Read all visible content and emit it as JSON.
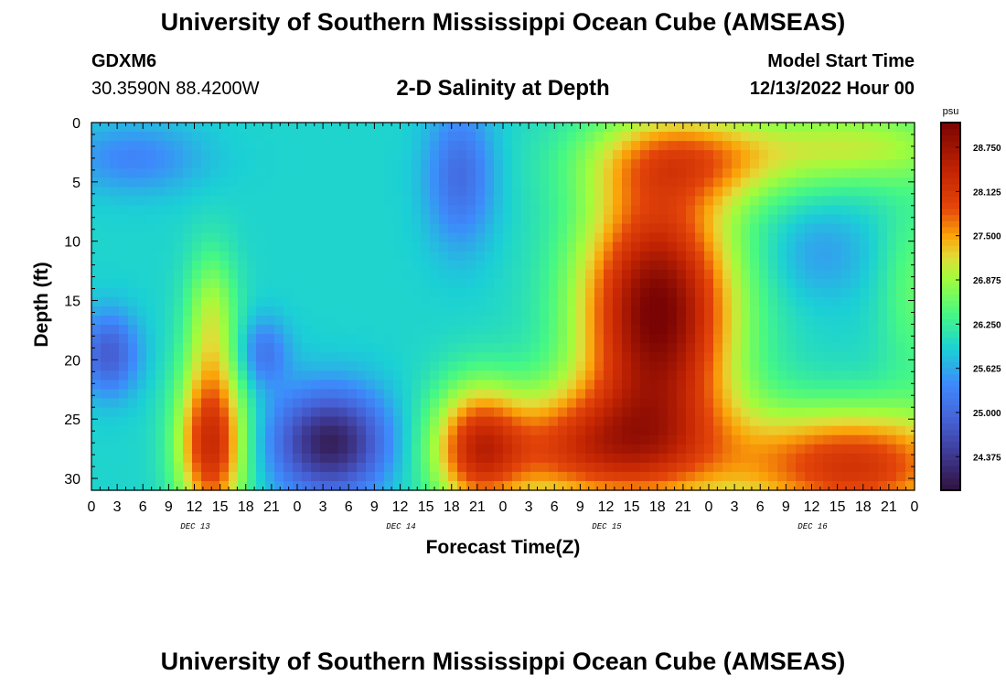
{
  "header": {
    "title": "University of Southern Mississippi Ocean Cube (AMSEAS)",
    "station_id": "GDXM6",
    "station_coords": "30.3590N  88.4200W",
    "chart_heading": "2-D Salinity at Depth",
    "run_label": "Model Start Time",
    "run_value": "12/13/2022 Hour 00"
  },
  "footer": {
    "title": "University of Southern Mississippi Ocean Cube (AMSEAS)"
  },
  "chart_data": {
    "type": "heatmap",
    "title": "2-D Salinity at Depth",
    "xlabel": "Forecast Time(Z)",
    "ylabel": "Depth (ft)",
    "x_tick_labels": [
      "0",
      "3",
      "6",
      "9",
      "12",
      "15",
      "18",
      "21",
      "0",
      "3",
      "6",
      "9",
      "12",
      "15",
      "18",
      "21",
      "0",
      "3",
      "6",
      "9",
      "12",
      "15",
      "18",
      "21",
      "0",
      "3",
      "6",
      "9",
      "12",
      "15",
      "18",
      "21",
      "0"
    ],
    "x_day_labels": [
      "DEC 13",
      "DEC 14",
      "DEC 15",
      "DEC 16"
    ],
    "x_range_hours": [
      0,
      96
    ],
    "y_ticks": [
      0,
      5,
      10,
      15,
      20,
      25,
      30
    ],
    "y_tick_labels": [
      "0",
      "5",
      "10",
      "15",
      "20",
      "25",
      "30"
    ],
    "y_range_ft": [
      0,
      31
    ],
    "colorbar": {
      "units": "psu",
      "range": [
        23.9,
        29.1
      ],
      "tick_values": [
        24.375,
        25.0,
        25.625,
        26.25,
        26.875,
        27.5,
        28.125,
        28.75
      ],
      "tick_labels": [
        "24.375",
        "25.000",
        "25.625",
        "26.250",
        "26.875",
        "27.500",
        "28.125",
        "28.750"
      ],
      "colormap_stops": [
        [
          23.9,
          "#30123b"
        ],
        [
          24.4,
          "#3e3891"
        ],
        [
          24.9,
          "#4661d6"
        ],
        [
          25.4,
          "#3e89fb"
        ],
        [
          25.9,
          "#1bd0d5"
        ],
        [
          26.4,
          "#46f884"
        ],
        [
          26.9,
          "#a2fc3c"
        ],
        [
          27.2,
          "#e2dc38"
        ],
        [
          27.5,
          "#fba40a"
        ],
        [
          27.9,
          "#e4460a"
        ],
        [
          28.4,
          "#c42503"
        ],
        [
          29.1,
          "#7a0403"
        ]
      ]
    },
    "salinity_field_description_points": [
      {
        "time_h": 2,
        "depth_ft": 19,
        "psu": 24.9
      },
      {
        "time_h": 13,
        "depth_ft": 26,
        "psu": 28.3
      },
      {
        "time_h": 13,
        "depth_ft": 10,
        "psu": 26.3
      },
      {
        "time_h": 20,
        "depth_ft": 19,
        "psu": 25.2
      },
      {
        "time_h": 28,
        "depth_ft": 27,
        "psu": 24.3
      },
      {
        "time_h": 43,
        "depth_ft": 4,
        "psu": 25.1
      },
      {
        "time_h": 44,
        "depth_ft": 27,
        "psu": 28.0
      },
      {
        "time_h": 66,
        "depth_ft": 17,
        "psu": 29.0
      },
      {
        "time_h": 66,
        "depth_ft": 2,
        "psu": 27.9
      },
      {
        "time_h": 85,
        "depth_ft": 11,
        "psu": 25.6
      },
      {
        "time_h": 90,
        "depth_ft": 28,
        "psu": 28.2
      }
    ]
  }
}
